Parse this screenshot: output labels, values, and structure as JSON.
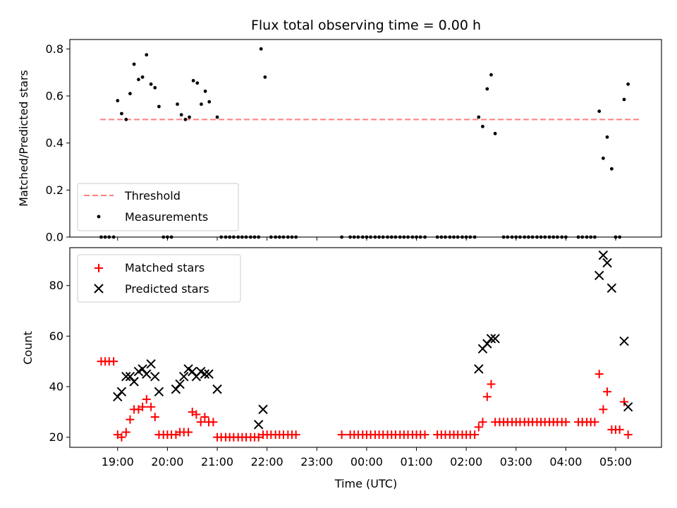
{
  "chart_data": [
    {
      "type": "scatter",
      "title": "Flux total observing time = 0.00 h",
      "ylabel": "Matched/Predicted stars",
      "xlabel": "",
      "x_unit": "hours UTC",
      "xlim": [
        18.04,
        29.92
      ],
      "ylim": [
        0,
        0.84
      ],
      "yticks": [
        0.0,
        0.2,
        0.4,
        0.6,
        0.8
      ],
      "ytick_labels": [
        "0.0",
        "0.2",
        "0.4",
        "0.6",
        "0.8"
      ],
      "legend_position": "lower-left",
      "threshold": {
        "name": "Threshold",
        "color": "#ff7f7f",
        "style": "dashed",
        "y": 0.5,
        "x_range": [
          18.65,
          29.5
        ]
      },
      "series": [
        {
          "name": "Measurements",
          "marker": "dot",
          "color": "#000000",
          "points": [
            [
              18.67,
              0
            ],
            [
              18.75,
              0
            ],
            [
              18.83,
              0
            ],
            [
              18.92,
              0
            ],
            [
              19.0,
              0.58
            ],
            [
              19.08,
              0.525
            ],
            [
              19.17,
              0.5
            ],
            [
              19.25,
              0.61
            ],
            [
              19.33,
              0.735
            ],
            [
              19.42,
              0.67
            ],
            [
              19.5,
              0.68
            ],
            [
              19.58,
              0.775
            ],
            [
              19.67,
              0.65
            ],
            [
              19.75,
              0.635
            ],
            [
              19.83,
              0.555
            ],
            [
              19.92,
              0
            ],
            [
              20.0,
              0
            ],
            [
              20.08,
              0
            ],
            [
              20.2,
              0.565
            ],
            [
              20.28,
              0.52
            ],
            [
              20.36,
              0.5
            ],
            [
              20.44,
              0.51
            ],
            [
              20.52,
              0.665
            ],
            [
              20.6,
              0.655
            ],
            [
              20.68,
              0.565
            ],
            [
              20.76,
              0.62
            ],
            [
              20.84,
              0.575
            ],
            [
              21.0,
              0.51
            ],
            [
              21.08,
              0
            ],
            [
              21.17,
              0
            ],
            [
              21.25,
              0
            ],
            [
              21.33,
              0
            ],
            [
              21.42,
              0
            ],
            [
              21.5,
              0
            ],
            [
              21.58,
              0
            ],
            [
              21.67,
              0
            ],
            [
              21.75,
              0
            ],
            [
              21.83,
              0
            ],
            [
              21.88,
              0.8
            ],
            [
              21.96,
              0.68
            ],
            [
              22.08,
              0
            ],
            [
              22.17,
              0
            ],
            [
              22.25,
              0
            ],
            [
              22.33,
              0
            ],
            [
              22.42,
              0
            ],
            [
              22.5,
              0
            ],
            [
              22.58,
              0
            ],
            [
              23.5,
              0
            ],
            [
              23.67,
              0
            ],
            [
              23.75,
              0
            ],
            [
              23.83,
              0
            ],
            [
              23.92,
              0
            ],
            [
              24.0,
              0
            ],
            [
              24.08,
              0
            ],
            [
              24.17,
              0
            ],
            [
              24.25,
              0
            ],
            [
              24.33,
              0
            ],
            [
              24.42,
              0
            ],
            [
              24.5,
              0
            ],
            [
              24.58,
              0
            ],
            [
              24.67,
              0
            ],
            [
              24.75,
              0
            ],
            [
              24.83,
              0
            ],
            [
              24.92,
              0
            ],
            [
              25.0,
              0
            ],
            [
              25.08,
              0
            ],
            [
              25.17,
              0
            ],
            [
              25.42,
              0
            ],
            [
              25.5,
              0
            ],
            [
              25.58,
              0
            ],
            [
              25.67,
              0
            ],
            [
              25.75,
              0
            ],
            [
              25.83,
              0
            ],
            [
              25.92,
              0
            ],
            [
              26.0,
              0
            ],
            [
              26.08,
              0
            ],
            [
              26.17,
              0
            ],
            [
              26.25,
              0.51
            ],
            [
              26.33,
              0.47
            ],
            [
              26.42,
              0.63
            ],
            [
              26.5,
              0.69
            ],
            [
              26.58,
              0.44
            ],
            [
              26.75,
              0
            ],
            [
              26.83,
              0
            ],
            [
              26.92,
              0
            ],
            [
              27.0,
              0
            ],
            [
              27.08,
              0
            ],
            [
              27.17,
              0
            ],
            [
              27.25,
              0
            ],
            [
              27.33,
              0
            ],
            [
              27.42,
              0
            ],
            [
              27.5,
              0
            ],
            [
              27.58,
              0
            ],
            [
              27.67,
              0
            ],
            [
              27.75,
              0
            ],
            [
              27.83,
              0
            ],
            [
              27.92,
              0
            ],
            [
              28.0,
              0
            ],
            [
              28.25,
              0
            ],
            [
              28.33,
              0
            ],
            [
              28.42,
              0
            ],
            [
              28.5,
              0
            ],
            [
              28.58,
              0
            ],
            [
              28.67,
              0.535
            ],
            [
              28.75,
              0.335
            ],
            [
              28.83,
              0.425
            ],
            [
              28.92,
              0.29
            ],
            [
              29.0,
              0
            ],
            [
              29.08,
              0
            ],
            [
              29.17,
              0.585
            ],
            [
              29.25,
              0.65
            ]
          ]
        }
      ]
    },
    {
      "type": "scatter",
      "title": "",
      "xlabel": "Time (UTC)",
      "ylabel": "Count",
      "x_unit": "hours UTC",
      "xlim": [
        18.04,
        29.92
      ],
      "ylim": [
        16,
        95
      ],
      "yticks": [
        20,
        40,
        60,
        80
      ],
      "ytick_labels": [
        "20",
        "40",
        "60",
        "80"
      ],
      "xticks": [
        19,
        20,
        21,
        22,
        23,
        24,
        25,
        26,
        27,
        28,
        29
      ],
      "xtick_labels": [
        "19:00",
        "20:00",
        "21:00",
        "22:00",
        "23:00",
        "00:00",
        "01:00",
        "02:00",
        "03:00",
        "04:00",
        "05:00"
      ],
      "legend_position": "upper-left",
      "series": [
        {
          "name": "Matched stars",
          "marker": "plus",
          "color": "#ff0000",
          "points": [
            [
              18.67,
              50
            ],
            [
              18.75,
              50
            ],
            [
              18.83,
              50
            ],
            [
              18.92,
              50
            ],
            [
              19.0,
              21
            ],
            [
              19.08,
              20
            ],
            [
              19.17,
              22
            ],
            [
              19.25,
              27
            ],
            [
              19.33,
              31
            ],
            [
              19.42,
              31
            ],
            [
              19.5,
              32
            ],
            [
              19.58,
              35
            ],
            [
              19.67,
              32
            ],
            [
              19.75,
              28
            ],
            [
              19.83,
              21
            ],
            [
              19.92,
              21
            ],
            [
              20.0,
              21
            ],
            [
              20.08,
              21
            ],
            [
              20.17,
              21
            ],
            [
              20.25,
              22
            ],
            [
              20.33,
              22
            ],
            [
              20.42,
              22
            ],
            [
              20.5,
              30
            ],
            [
              20.58,
              29
            ],
            [
              20.67,
              26
            ],
            [
              20.75,
              28
            ],
            [
              20.83,
              26
            ],
            [
              20.92,
              26
            ],
            [
              21.0,
              20
            ],
            [
              21.08,
              20
            ],
            [
              21.17,
              20
            ],
            [
              21.25,
              20
            ],
            [
              21.33,
              20
            ],
            [
              21.42,
              20
            ],
            [
              21.5,
              20
            ],
            [
              21.58,
              20
            ],
            [
              21.67,
              20
            ],
            [
              21.75,
              20
            ],
            [
              21.83,
              20
            ],
            [
              21.92,
              21
            ],
            [
              22.0,
              21
            ],
            [
              22.08,
              21
            ],
            [
              22.17,
              21
            ],
            [
              22.25,
              21
            ],
            [
              22.33,
              21
            ],
            [
              22.42,
              21
            ],
            [
              22.5,
              21
            ],
            [
              22.58,
              21
            ],
            [
              23.5,
              21
            ],
            [
              23.67,
              21
            ],
            [
              23.75,
              21
            ],
            [
              23.83,
              21
            ],
            [
              23.92,
              21
            ],
            [
              24.0,
              21
            ],
            [
              24.08,
              21
            ],
            [
              24.17,
              21
            ],
            [
              24.25,
              21
            ],
            [
              24.33,
              21
            ],
            [
              24.42,
              21
            ],
            [
              24.5,
              21
            ],
            [
              24.58,
              21
            ],
            [
              24.67,
              21
            ],
            [
              24.75,
              21
            ],
            [
              24.83,
              21
            ],
            [
              24.92,
              21
            ],
            [
              25.0,
              21
            ],
            [
              25.08,
              21
            ],
            [
              25.17,
              21
            ],
            [
              25.42,
              21
            ],
            [
              25.5,
              21
            ],
            [
              25.58,
              21
            ],
            [
              25.67,
              21
            ],
            [
              25.75,
              21
            ],
            [
              25.83,
              21
            ],
            [
              25.92,
              21
            ],
            [
              26.0,
              21
            ],
            [
              26.08,
              21
            ],
            [
              26.17,
              21
            ],
            [
              26.25,
              24
            ],
            [
              26.33,
              26
            ],
            [
              26.42,
              36
            ],
            [
              26.5,
              41
            ],
            [
              26.58,
              26
            ],
            [
              26.67,
              26
            ],
            [
              26.75,
              26
            ],
            [
              26.83,
              26
            ],
            [
              26.92,
              26
            ],
            [
              27.0,
              26
            ],
            [
              27.08,
              26
            ],
            [
              27.17,
              26
            ],
            [
              27.25,
              26
            ],
            [
              27.33,
              26
            ],
            [
              27.42,
              26
            ],
            [
              27.5,
              26
            ],
            [
              27.58,
              26
            ],
            [
              27.67,
              26
            ],
            [
              27.75,
              26
            ],
            [
              27.83,
              26
            ],
            [
              27.92,
              26
            ],
            [
              28.0,
              26
            ],
            [
              28.25,
              26
            ],
            [
              28.33,
              26
            ],
            [
              28.42,
              26
            ],
            [
              28.5,
              26
            ],
            [
              28.58,
              26
            ],
            [
              28.67,
              45
            ],
            [
              28.75,
              31
            ],
            [
              28.83,
              38
            ],
            [
              28.92,
              23
            ],
            [
              29.0,
              23
            ],
            [
              29.08,
              23
            ],
            [
              29.17,
              34
            ],
            [
              29.25,
              21
            ]
          ]
        },
        {
          "name": "Predicted stars",
          "marker": "x",
          "color": "#000000",
          "points": [
            [
              19.0,
              36
            ],
            [
              19.08,
              38
            ],
            [
              19.17,
              44
            ],
            [
              19.25,
              44
            ],
            [
              19.33,
              42
            ],
            [
              19.42,
              46
            ],
            [
              19.5,
              47
            ],
            [
              19.58,
              45
            ],
            [
              19.67,
              49
            ],
            [
              19.75,
              44
            ],
            [
              19.83,
              38
            ],
            [
              20.17,
              39
            ],
            [
              20.25,
              41
            ],
            [
              20.33,
              44
            ],
            [
              20.42,
              47
            ],
            [
              20.5,
              46
            ],
            [
              20.58,
              44
            ],
            [
              20.67,
              46
            ],
            [
              20.75,
              45
            ],
            [
              20.83,
              45
            ],
            [
              21.0,
              39
            ],
            [
              21.83,
              25
            ],
            [
              21.92,
              31
            ],
            [
              26.25,
              47
            ],
            [
              26.33,
              55
            ],
            [
              26.42,
              57
            ],
            [
              26.5,
              59
            ],
            [
              26.58,
              59
            ],
            [
              28.67,
              84
            ],
            [
              28.75,
              92
            ],
            [
              28.83,
              89
            ],
            [
              28.92,
              79
            ],
            [
              29.17,
              58
            ],
            [
              29.25,
              32
            ]
          ]
        }
      ]
    }
  ]
}
